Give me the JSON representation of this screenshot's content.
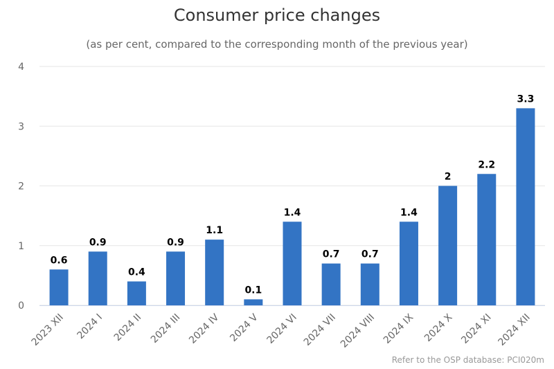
{
  "chart_data": {
    "type": "bar",
    "title": "Consumer price changes",
    "subtitle": "(as per cent, compared to the corresponding month of the previous year)",
    "categories": [
      "2023 XII",
      "2024 I",
      "2024 II",
      "2024 III",
      "2024 IV",
      "2024 V",
      "2024 VI",
      "2024 VII",
      "2024 VIII",
      "2024 IX",
      "2024 X",
      "2024 XI",
      "2024 XII"
    ],
    "values": [
      0.6,
      0.9,
      0.4,
      0.9,
      1.1,
      0.1,
      1.4,
      0.7,
      0.7,
      1.4,
      2,
      2.2,
      3.3
    ],
    "data_labels": [
      "0.6",
      "0.9",
      "0.4",
      "0.9",
      "1.1",
      "0.1",
      "1.4",
      "0.7",
      "0.7",
      "1.4",
      "2",
      "2.2",
      "3.3"
    ],
    "y_ticks": [
      "0",
      "1",
      "2",
      "3",
      "4"
    ],
    "ylim": [
      0,
      4
    ],
    "xlabel": "",
    "ylabel": "",
    "grid": true,
    "legend": "none",
    "bar_color": "#3374c4",
    "credit": "Refer to the OSP database: PCI020m"
  }
}
